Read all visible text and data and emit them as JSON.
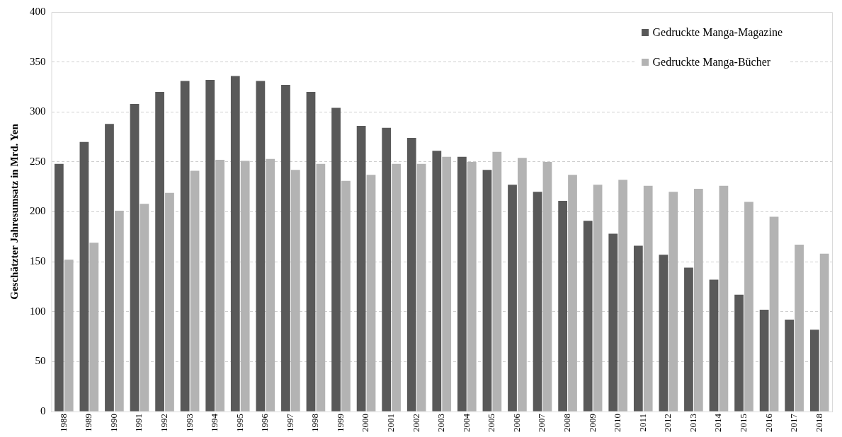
{
  "chart_data": {
    "type": "bar",
    "ylabel": "Geschätzter Jahresumsatz in Mrd. Yen",
    "categories": [
      "1988",
      "1989",
      "1990",
      "1991",
      "1992",
      "1993",
      "1994",
      "1995",
      "1996",
      "1997",
      "1998",
      "1999",
      "2000",
      "2001",
      "2002",
      "2003",
      "2004",
      "2005",
      "2006",
      "2007",
      "2008",
      "2009",
      "2010",
      "2011",
      "2012",
      "2013",
      "2014",
      "2015",
      "2016",
      "2017",
      "2018"
    ],
    "series": [
      {
        "name": "Gedruckte Manga-Magazine",
        "color": "#595959",
        "values": [
          248,
          270,
          288,
          308,
          320,
          331,
          332,
          336,
          331,
          327,
          320,
          304,
          286,
          284,
          274,
          261,
          255,
          242,
          227,
          220,
          211,
          191,
          178,
          166,
          157,
          144,
          132,
          117,
          102,
          92,
          82
        ]
      },
      {
        "name": "Gedruckte Manga-Bücher",
        "color": "#b3b3b3",
        "values": [
          152,
          169,
          201,
          208,
          219,
          241,
          252,
          251,
          253,
          242,
          248,
          231,
          237,
          248,
          248,
          255,
          250,
          260,
          254,
          250,
          237,
          227,
          232,
          226,
          220,
          223,
          226,
          210,
          195,
          167,
          158
        ]
      }
    ],
    "ylim": [
      0,
      400
    ],
    "yticks": [
      0,
      50,
      100,
      150,
      200,
      250,
      300,
      350,
      400
    ],
    "grid": "y",
    "legend": "top right"
  }
}
